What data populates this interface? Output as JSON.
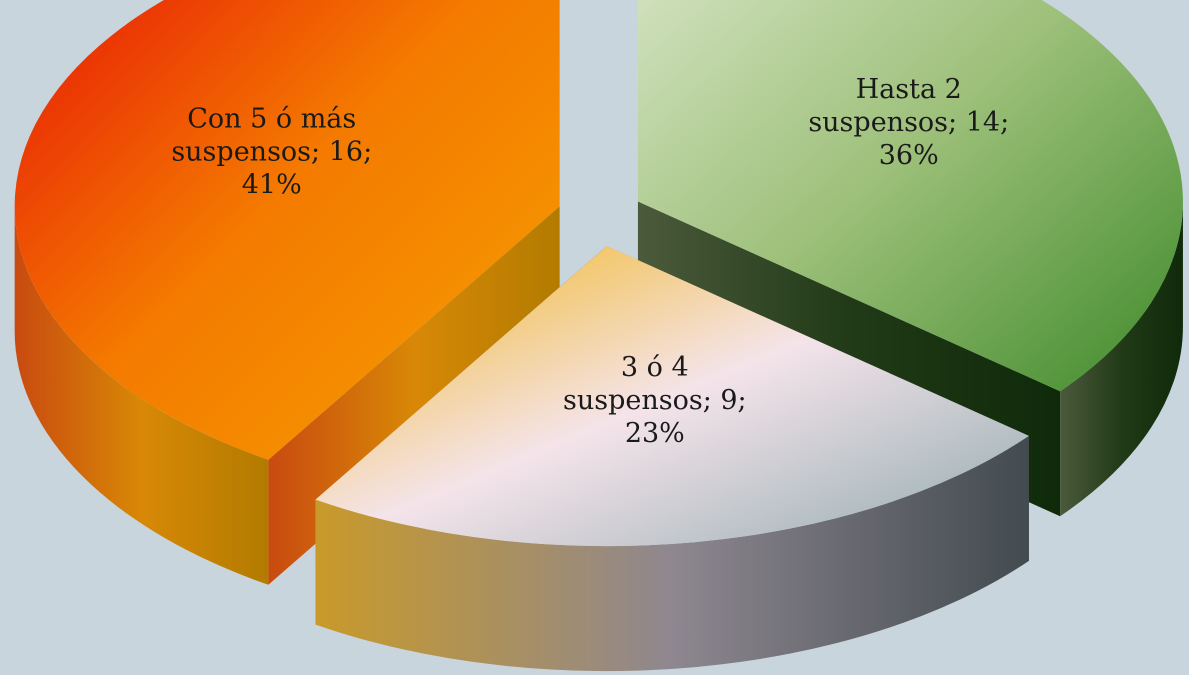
{
  "chart_data": {
    "type": "pie",
    "style": "3d-exploded",
    "slices": [
      {
        "name": "Hasta 2 suspensos",
        "value": 14,
        "percent": 36,
        "label_lines": [
          "Hasta 2",
          "suspensos; 14;",
          "36%"
        ],
        "top_colors": [
          "#dce8cc",
          "#9dc07a",
          "#3f8a2a"
        ],
        "side_colors": [
          "#4b5a3b",
          "#213a17",
          "#0f2a0a"
        ]
      },
      {
        "name": "3 ó 4 suspensos",
        "value": 9,
        "percent": 23,
        "label_lines": [
          "3 ó 4",
          "suspensos; 9;",
          "23%"
        ],
        "top_colors": [
          "#f2b416",
          "#f4e4ea",
          "#8fa9ad"
        ],
        "side_colors": [
          "#c99a2a",
          "#8e8790",
          "#424b4f"
        ]
      },
      {
        "name": "Con 5 ó más suspensos",
        "value": 16,
        "percent": 41,
        "label_lines": [
          "Con 5 ó más",
          "suspensos; 16;",
          "41%"
        ],
        "top_colors": [
          "#e50808",
          "#f47a00",
          "#f6a100"
        ],
        "side_colors": [
          "#c94a10",
          "#d88806",
          "#b27b00"
        ]
      }
    ]
  }
}
